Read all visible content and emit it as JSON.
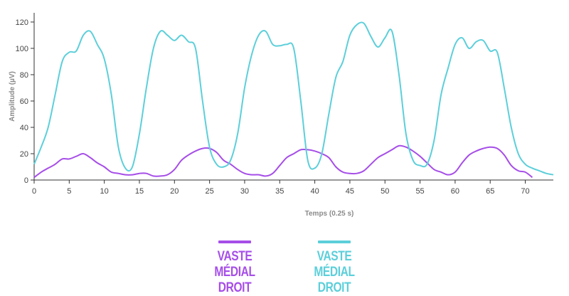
{
  "chart_data": {
    "type": "line",
    "xlabel": "Temps (0.25 s)",
    "ylabel": "Amplitude (µV)",
    "xlim": [
      0,
      74
    ],
    "ylim": [
      0,
      127
    ],
    "xticks": [
      0,
      5,
      10,
      15,
      20,
      25,
      30,
      35,
      40,
      45,
      50,
      55,
      60,
      65,
      70
    ],
    "yticks": [
      0,
      20,
      40,
      60,
      80,
      100,
      120
    ],
    "grid": false,
    "legend_position": "bottom",
    "series": [
      {
        "name": "VASTE MÉDIAL DROIT",
        "color": "#a64ee8",
        "x": [
          0,
          1,
          2,
          3,
          4,
          5,
          6,
          7,
          8,
          9,
          10,
          11,
          12,
          13,
          14,
          15,
          16,
          17,
          18,
          19,
          20,
          21,
          22,
          23,
          24,
          25,
          26,
          27,
          28,
          29,
          30,
          31,
          32,
          33,
          34,
          35,
          36,
          37,
          38,
          39,
          40,
          41,
          42,
          43,
          44,
          45,
          46,
          47,
          48,
          49,
          50,
          51,
          52,
          53,
          54,
          55,
          56,
          57,
          58,
          59,
          60,
          61,
          62,
          63,
          64,
          65,
          66,
          67,
          68,
          69,
          70,
          71
        ],
        "y": [
          2,
          6,
          9,
          12,
          16,
          16,
          18,
          20,
          17,
          13,
          10,
          6,
          5,
          4,
          4,
          5,
          5,
          3,
          3,
          4,
          8,
          15,
          19,
          22,
          24,
          24,
          21,
          15,
          12,
          8,
          5,
          4,
          4,
          3,
          5,
          11,
          17,
          20,
          23,
          23,
          22,
          20,
          17,
          10,
          6,
          5,
          5,
          7,
          12,
          17,
          20,
          23,
          26,
          25,
          22,
          18,
          13,
          8,
          6,
          4,
          6,
          13,
          19,
          22,
          24,
          25,
          24,
          19,
          11,
          7,
          6,
          2
        ]
      },
      {
        "name": "VASTE MÉDIAL DROIT",
        "color": "#5ccfda",
        "x": [
          0,
          1,
          2,
          3,
          4,
          5,
          6,
          7,
          8,
          9,
          10,
          11,
          12,
          13,
          14,
          15,
          16,
          17,
          18,
          19,
          20,
          21,
          22,
          23,
          24,
          25,
          26,
          27,
          28,
          29,
          30,
          31,
          32,
          33,
          34,
          35,
          36,
          37,
          38,
          39,
          40,
          41,
          42,
          43,
          44,
          45,
          46,
          47,
          48,
          49,
          50,
          51,
          52,
          53,
          54,
          55,
          56,
          57,
          58,
          59,
          60,
          61,
          62,
          63,
          64,
          65,
          66,
          67,
          68,
          69,
          70,
          71,
          72,
          73,
          74
        ],
        "y": [
          12,
          25,
          40,
          65,
          90,
          97,
          98,
          110,
          113,
          103,
          92,
          65,
          25,
          9,
          10,
          35,
          70,
          100,
          113,
          110,
          106,
          110,
          105,
          100,
          60,
          25,
          12,
          10,
          15,
          35,
          70,
          95,
          110,
          113,
          103,
          102,
          103,
          100,
          60,
          15,
          9,
          20,
          50,
          78,
          90,
          110,
          118,
          119,
          109,
          101,
          108,
          113,
          80,
          35,
          15,
          11,
          12,
          30,
          65,
          85,
          103,
          108,
          100,
          105,
          106,
          98,
          97,
          70,
          40,
          20,
          12,
          9,
          7,
          5,
          4
        ]
      }
    ]
  }
}
